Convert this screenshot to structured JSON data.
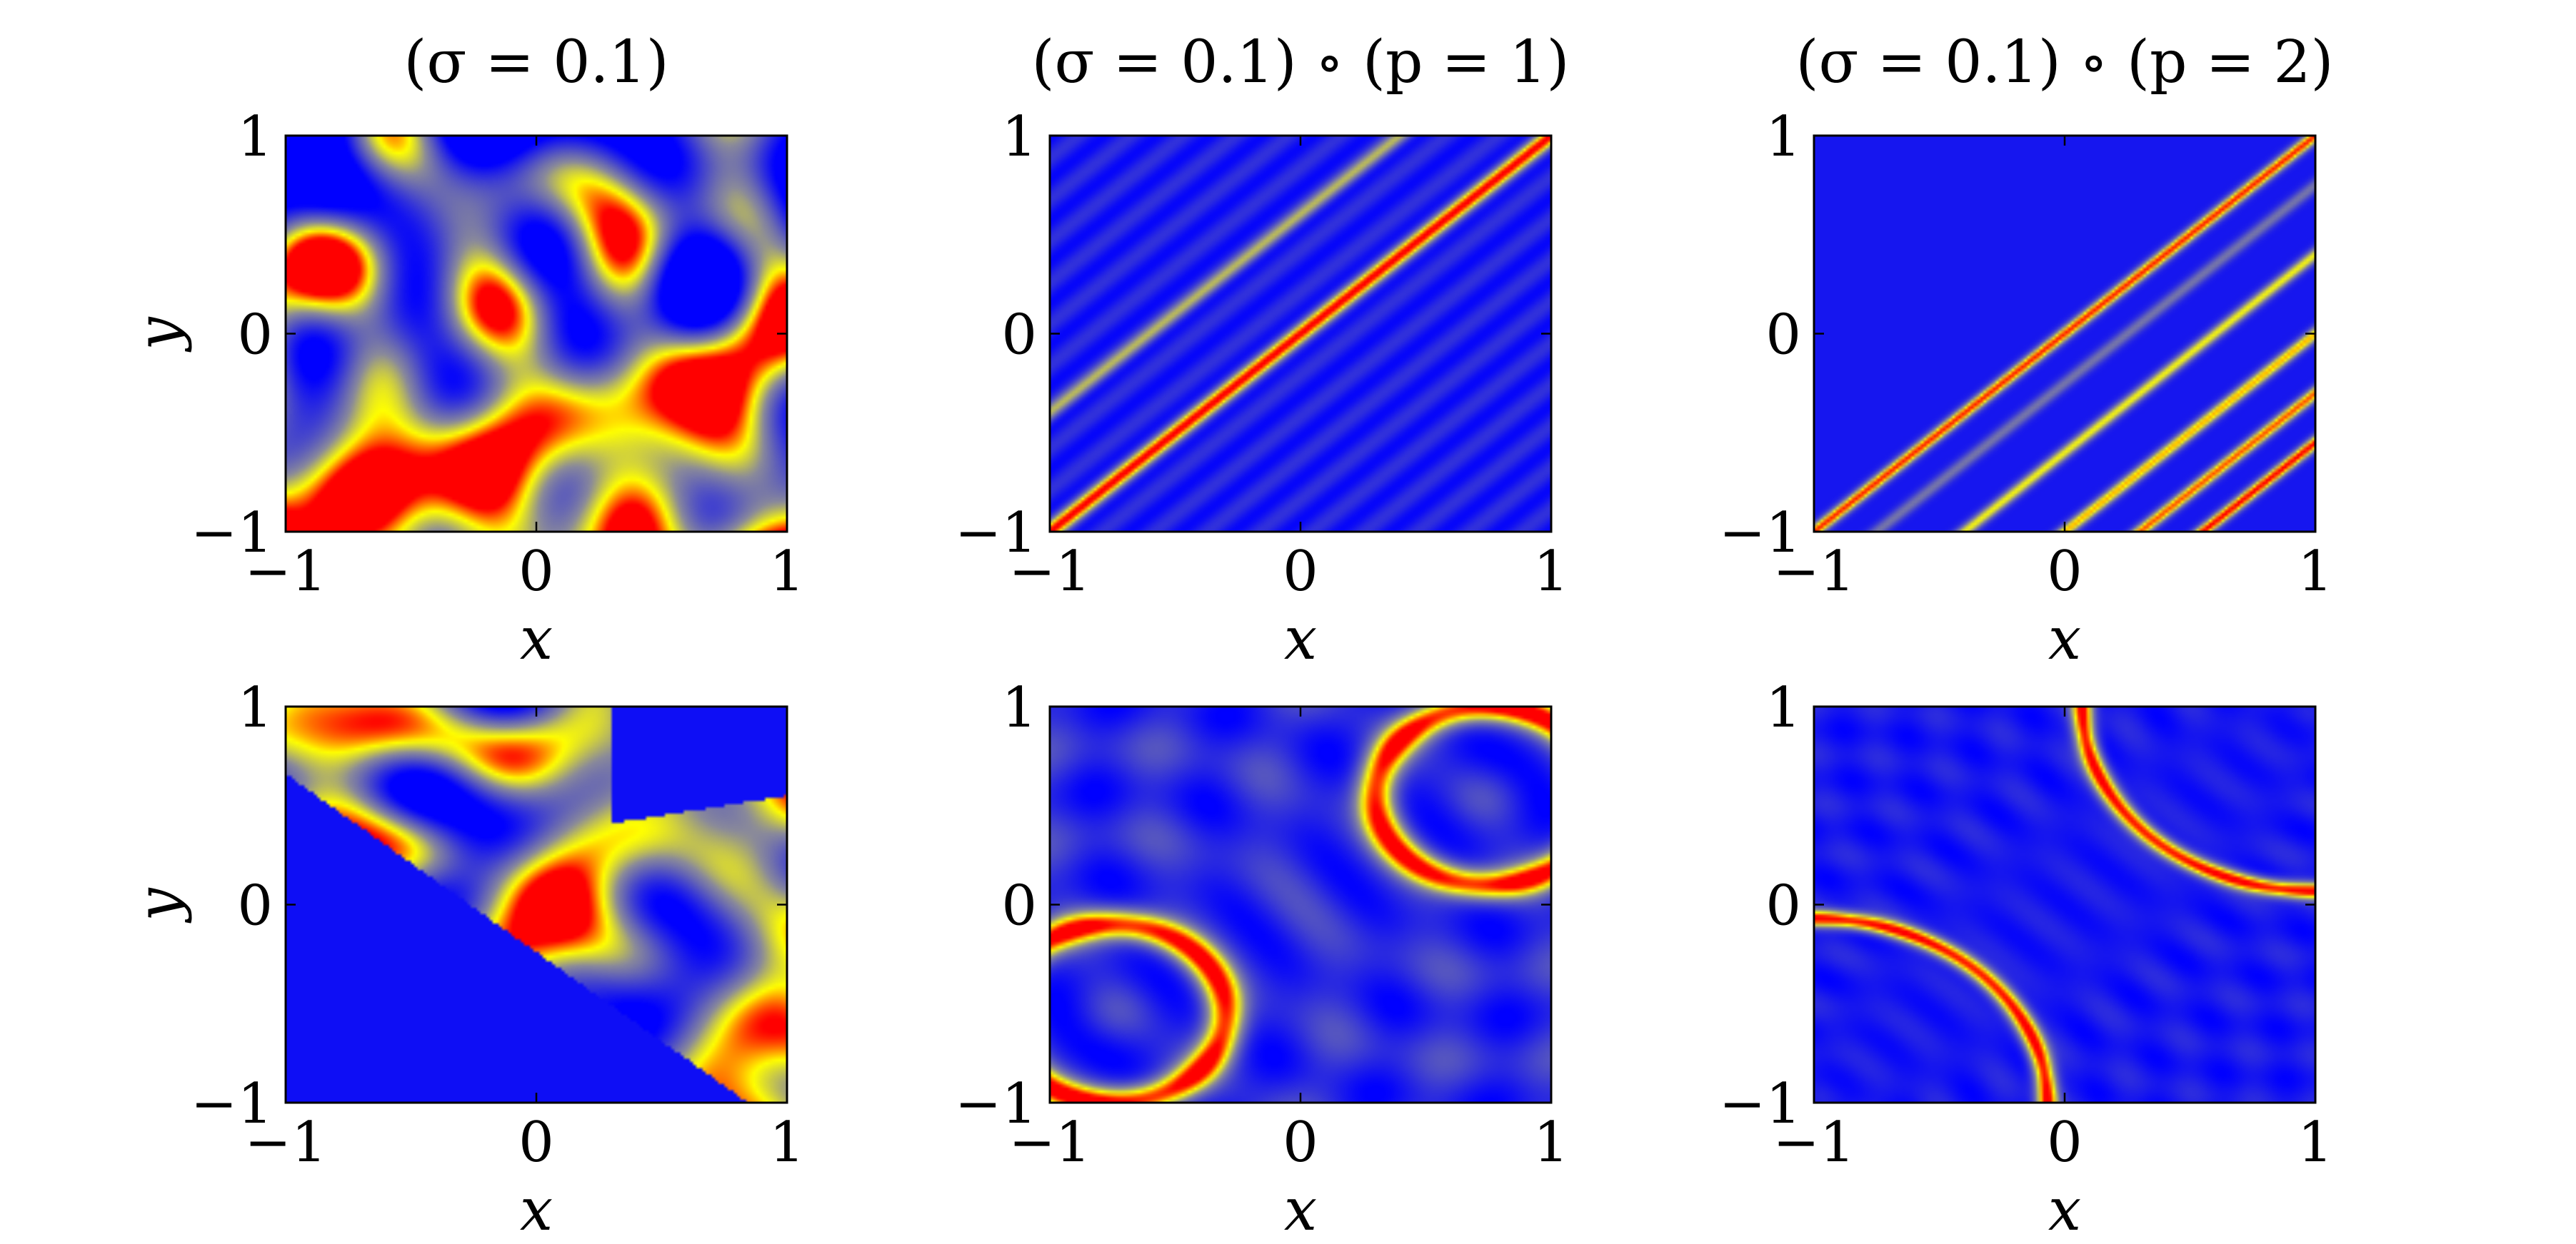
{
  "colors": {
    "low": "#0000ff",
    "mid": "#ffff00",
    "high": "#ff0000",
    "gray": "#8a8a9a"
  },
  "chart_data": [
    {
      "type": "heatmap",
      "row": 0,
      "col": 0,
      "title": "(σ = 0.1)",
      "pattern": "random_blobs_red",
      "xlabel": "x",
      "ylabel": "y",
      "xlim": [
        -1,
        1
      ],
      "ylim": [
        -1,
        1
      ],
      "xticks": [
        "−1",
        "0",
        "1"
      ],
      "yticks": [
        "−1",
        "0",
        "1"
      ]
    },
    {
      "type": "heatmap",
      "row": 0,
      "col": 1,
      "title": "(σ = 0.1) ∘ (p = 1)",
      "pattern": "diagonal_band",
      "xlabel": "x",
      "ylabel": "",
      "xlim": [
        -1,
        1
      ],
      "ylim": [
        -1,
        1
      ],
      "xticks": [
        "−1",
        "0",
        "1"
      ],
      "yticks": [
        "−1",
        "0",
        "1"
      ]
    },
    {
      "type": "heatmap",
      "row": 0,
      "col": 2,
      "title": "(σ = 0.1) ∘ (p = 2)",
      "pattern": "diagonal_stripes",
      "xlabel": "x",
      "ylabel": "",
      "xlim": [
        -1,
        1
      ],
      "ylim": [
        -1,
        1
      ],
      "xticks": [
        "−1",
        "0",
        "1"
      ],
      "yticks": [
        "−1",
        "0",
        "1"
      ]
    },
    {
      "type": "heatmap",
      "row": 1,
      "col": 0,
      "title": "",
      "pattern": "random_blobs_orange",
      "xlabel": "x",
      "ylabel": "y",
      "xlim": [
        -1,
        1
      ],
      "ylim": [
        -1,
        1
      ],
      "xticks": [
        "−1",
        "0",
        "1"
      ],
      "yticks": [
        "−1",
        "0",
        "1"
      ]
    },
    {
      "type": "heatmap",
      "row": 1,
      "col": 1,
      "title": "",
      "pattern": "two_arcs_soft",
      "xlabel": "x",
      "ylabel": "",
      "xlim": [
        -1,
        1
      ],
      "ylim": [
        -1,
        1
      ],
      "xticks": [
        "−1",
        "0",
        "1"
      ],
      "yticks": [
        "−1",
        "0",
        "1"
      ]
    },
    {
      "type": "heatmap",
      "row": 1,
      "col": 2,
      "title": "",
      "pattern": "two_arcs_sharp",
      "xlabel": "x",
      "ylabel": "",
      "xlim": [
        -1,
        1
      ],
      "ylim": [
        -1,
        1
      ],
      "xticks": [
        "−1",
        "0",
        "1"
      ],
      "yticks": [
        "−1",
        "0",
        "1"
      ]
    }
  ]
}
